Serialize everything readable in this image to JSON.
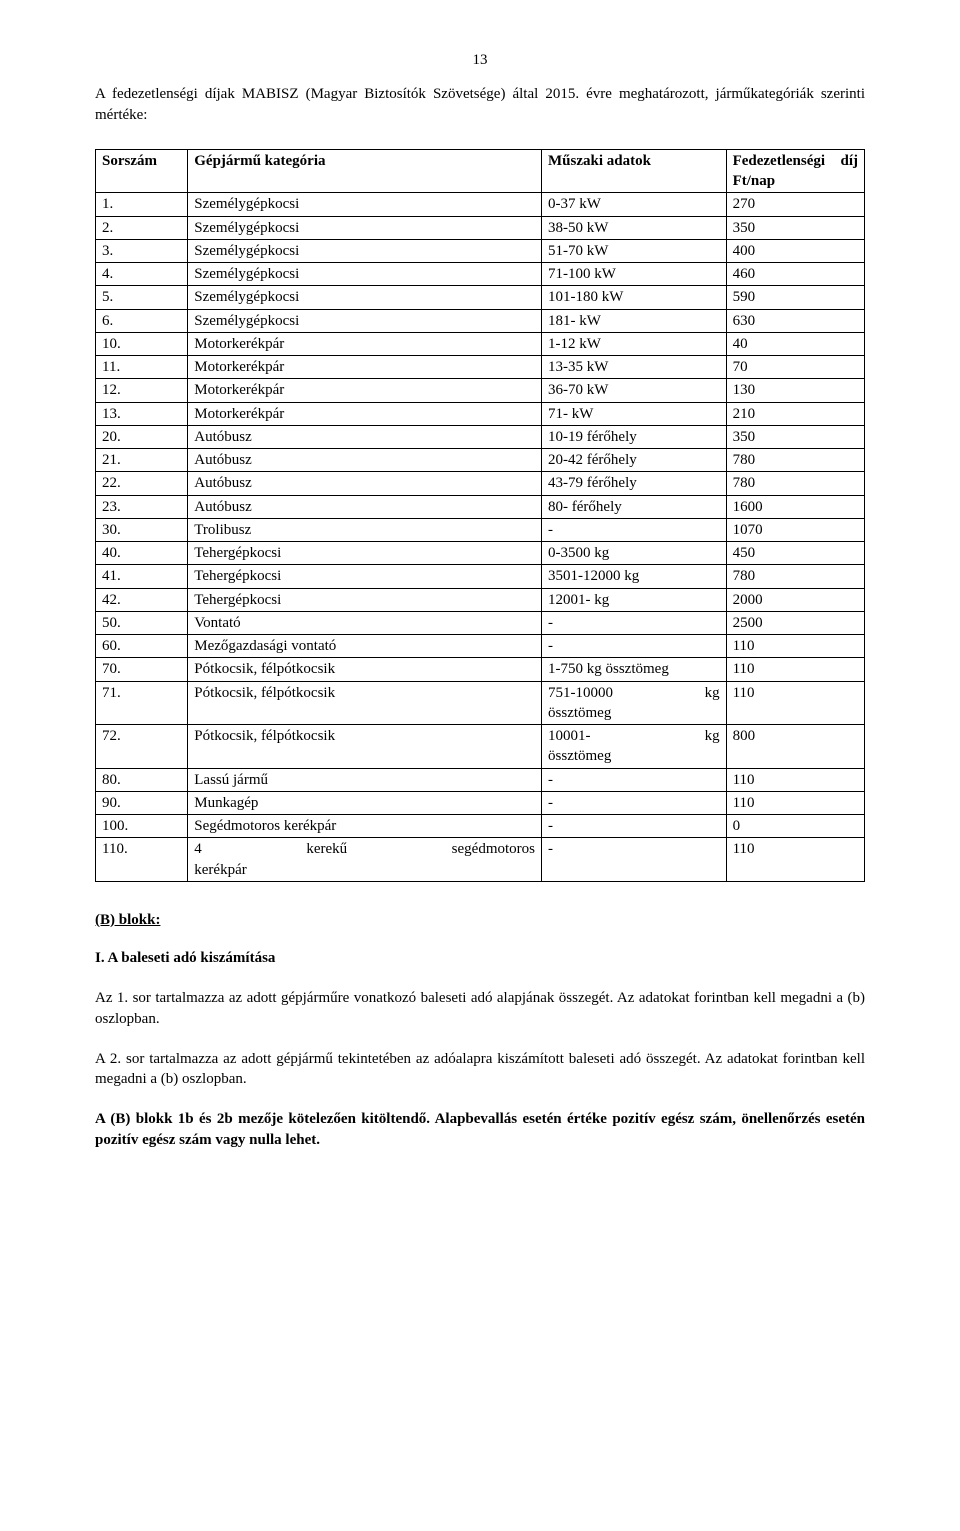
{
  "pageNumber": "13",
  "intro": "A fedezetlenségi díjak MABISZ (Magyar Biztosítók Szövetsége) által 2015. évre meghatározott, járműkategóriák szerinti mértéke:",
  "table": {
    "headers": {
      "c1": "Sorszám",
      "c2": "Gépjármű kategória",
      "c3": "Műszaki adatok",
      "c4a": "Fedezetlenségi",
      "c4b": "díj",
      "c4c": "Ft/nap"
    },
    "rows": [
      {
        "n": "1.",
        "cat": "Személygépkocsi",
        "spec": "0-37 kW",
        "fee": "270"
      },
      {
        "n": "2.",
        "cat": "Személygépkocsi",
        "spec": "38-50 kW",
        "fee": "350"
      },
      {
        "n": "3.",
        "cat": "Személygépkocsi",
        "spec": "51-70 kW",
        "fee": "400"
      },
      {
        "n": "4.",
        "cat": "Személygépkocsi",
        "spec": "71-100 kW",
        "fee": "460"
      },
      {
        "n": "5.",
        "cat": "Személygépkocsi",
        "spec": "101-180 kW",
        "fee": "590"
      },
      {
        "n": "6.",
        "cat": "Személygépkocsi",
        "spec": "181- kW",
        "fee": "630"
      },
      {
        "n": "10.",
        "cat": "Motorkerékpár",
        "spec": "1-12 kW",
        "fee": "40"
      },
      {
        "n": "11.",
        "cat": "Motorkerékpár",
        "spec": "13-35 kW",
        "fee": "70"
      },
      {
        "n": "12.",
        "cat": "Motorkerékpár",
        "spec": "36-70 kW",
        "fee": "130"
      },
      {
        "n": "13.",
        "cat": "Motorkerékpár",
        "spec": "71- kW",
        "fee": "210"
      },
      {
        "n": "20.",
        "cat": "Autóbusz",
        "spec": "10-19 férőhely",
        "fee": "350"
      },
      {
        "n": "21.",
        "cat": "Autóbusz",
        "spec": "20-42 férőhely",
        "fee": "780"
      },
      {
        "n": "22.",
        "cat": "Autóbusz",
        "spec": "43-79 férőhely",
        "fee": "780"
      },
      {
        "n": "23.",
        "cat": "Autóbusz",
        "spec": "80- férőhely",
        "fee": "1600"
      },
      {
        "n": "30.",
        "cat": "Trolibusz",
        "spec": "-",
        "fee": "1070"
      },
      {
        "n": "40.",
        "cat": "Tehergépkocsi",
        "spec": "0-3500 kg",
        "fee": "450"
      },
      {
        "n": "41.",
        "cat": "Tehergépkocsi",
        "spec": "3501-12000 kg",
        "fee": "780"
      },
      {
        "n": "42.",
        "cat": "Tehergépkocsi",
        "spec": "12001- kg",
        "fee": "2000"
      },
      {
        "n": "50.",
        "cat": "Vontató",
        "spec": "-",
        "fee": "2500"
      },
      {
        "n": "60.",
        "cat": "Mezőgazdasági vontató",
        "spec": "-",
        "fee": "110"
      },
      {
        "n": "70.",
        "cat": "Pótkocsik, félpótkocsik",
        "spec": "1-750 kg össztömeg",
        "fee": "110"
      },
      {
        "n": "71.",
        "cat": "Pótkocsik, félpótkocsik",
        "spec_a": "751-10000",
        "spec_b": "kg",
        "spec2": "össztömeg",
        "fee": "110",
        "two": true
      },
      {
        "n": "72.",
        "cat": "Pótkocsik, félpótkocsik",
        "spec_a": "10001-",
        "spec_b": "kg",
        "spec2": "össztömeg",
        "fee": "800",
        "two": true
      },
      {
        "n": "80.",
        "cat": "Lassú jármű",
        "spec": "-",
        "fee": "110"
      },
      {
        "n": "90.",
        "cat": "Munkagép",
        "spec": "-",
        "fee": "110"
      },
      {
        "n": "100.",
        "cat": "Segédmotoros kerékpár",
        "spec": "-",
        "fee": "0"
      },
      {
        "n": "110.",
        "cat_a": "4",
        "cat_b": "kerekű",
        "cat_c": "segédmotoros",
        "cat2": "kerékpár",
        "spec": "-",
        "fee": "110",
        "catTwo": true
      }
    ]
  },
  "sectB": "(B) blokk:",
  "sectI": "I. A baleseti adó kiszámítása",
  "p1": "Az 1. sor tartalmazza az adott gépjárműre vonatkozó baleseti adó alapjának összegét. Az adatokat forintban kell megadni a (b) oszlopban.",
  "p2": "A 2. sor tartalmazza az adott gépjármű tekintetében az adóalapra kiszámított baleseti adó összegét. Az adatokat forintban kell megadni a (b) oszlopban.",
  "p3": "A (B) blokk 1b és 2b mezője kötelezően kitöltendő. Alapbevallás esetén értéke pozitív egész szám, önellenőrzés esetén pozitív egész szám vagy nulla lehet."
}
